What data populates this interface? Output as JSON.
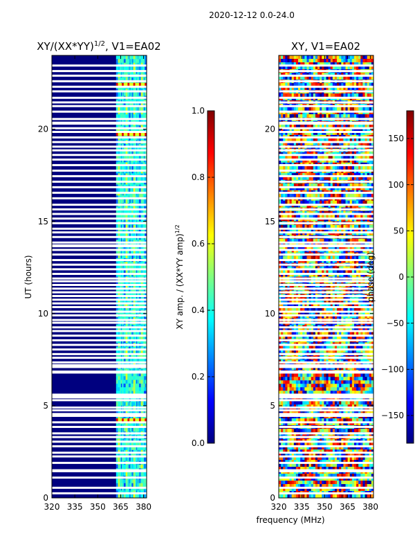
{
  "suptitle": "2020-12-12 0.0-24.0",
  "colors": {
    "jet": [
      "#00007f",
      "#0000ff",
      "#0080ff",
      "#00ffff",
      "#80ff80",
      "#ffff00",
      "#ff8000",
      "#ff0000",
      "#7f0000"
    ],
    "axis": "#000000",
    "gap": "#ffffff"
  },
  "chart_data": [
    {
      "type": "heatmap",
      "title_main": "XY/(XX*YY)",
      "title_sup": "1/2",
      "title_rest": ", V1=EA02",
      "xlabel": "",
      "ylabel": "UT (hours)",
      "xlim": [
        320,
        382
      ],
      "ylim": [
        0,
        24
      ],
      "xticks": [
        320,
        335,
        350,
        365,
        380
      ],
      "yticks": [
        0,
        5,
        10,
        15,
        20
      ],
      "band_start_mhz": 362,
      "band_lines_mhz": [
        364.5,
        366,
        369.5,
        371.5,
        374.5,
        376,
        379.5
      ],
      "hot_rows_hours": [
        4.2,
        22.4,
        19.7
      ],
      "colorbar": {
        "label_main": "XY amp. / (XX*YY amp)",
        "label_sup": "1/2",
        "range": [
          0.0,
          1.0
        ],
        "ticks": [
          0.0,
          0.2,
          0.4,
          0.6,
          0.8,
          1.0
        ],
        "tick_labels": [
          "0.0",
          "0.2",
          "0.4",
          "0.6",
          "0.8",
          "1.0"
        ]
      }
    },
    {
      "type": "heatmap",
      "title": "XY, V1=EA02",
      "xlabel": "frequency (MHz)",
      "ylabel": "",
      "xlim": [
        320,
        382
      ],
      "ylim": [
        0,
        24
      ],
      "xticks": [
        320,
        335,
        350,
        365,
        380
      ],
      "yticks": [
        0,
        5,
        10,
        15,
        20
      ],
      "colorbar": {
        "label": "phase (deg)",
        "range": [
          -180,
          180
        ],
        "ticks": [
          -150,
          -100,
          -50,
          0,
          50,
          100,
          150
        ],
        "tick_labels": [
          "−150",
          "−100",
          "−50",
          "0",
          "50",
          "100",
          "150"
        ]
      }
    }
  ],
  "gap_rows_hours": [
    0.25,
    0.55,
    1.1,
    1.45,
    1.5,
    1.9,
    2.25,
    2.45,
    2.8,
    3.05,
    3.3,
    3.5,
    3.85,
    4.1,
    4.45,
    4.55,
    4.75,
    4.9,
    5.3,
    5.45,
    5.55,
    5.6,
    6.8,
    6.85,
    7.1,
    7.2,
    7.35,
    7.6,
    7.8,
    8.05,
    8.3,
    8.55,
    8.8,
    9.05,
    9.25,
    9.5,
    9.65,
    9.9,
    10.1,
    10.35,
    10.55,
    10.75,
    10.95,
    11.15,
    11.35,
    11.55,
    11.75,
    11.9,
    12.15,
    12.4,
    12.65,
    12.9,
    13.2,
    13.45,
    13.65,
    13.7,
    13.85,
    14.15,
    14.4,
    14.6,
    14.9,
    15.15,
    15.4,
    15.65,
    15.9,
    16.25,
    16.55,
    16.85,
    17.15,
    17.45,
    17.75,
    18.05,
    18.35,
    18.6,
    18.85,
    19.05,
    19.3,
    19.55,
    19.85,
    20.05,
    20.3,
    20.35,
    20.55,
    20.95,
    21.25,
    21.45,
    21.7,
    22.05,
    22.3,
    22.6,
    22.9,
    23.15,
    23.45
  ]
}
